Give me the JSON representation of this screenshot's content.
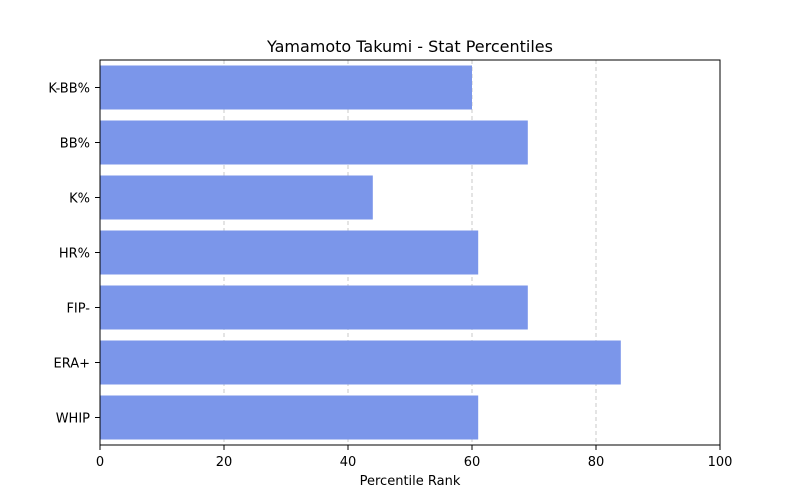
{
  "chart_data": {
    "type": "bar",
    "orientation": "horizontal",
    "title": "Yamamoto Takumi - Stat Percentiles",
    "xlabel": "Percentile Rank",
    "ylabel": "",
    "categories": [
      "K-BB%",
      "BB%",
      "K%",
      "HR%",
      "FIP-",
      "ERA+",
      "WHIP"
    ],
    "values": [
      60,
      69,
      44,
      61,
      69,
      84,
      61
    ],
    "xlim": [
      0,
      100
    ],
    "xticks": [
      0,
      20,
      40,
      60,
      80,
      100
    ],
    "grid": "x-dashed",
    "bar_color": "#7b96ea"
  }
}
